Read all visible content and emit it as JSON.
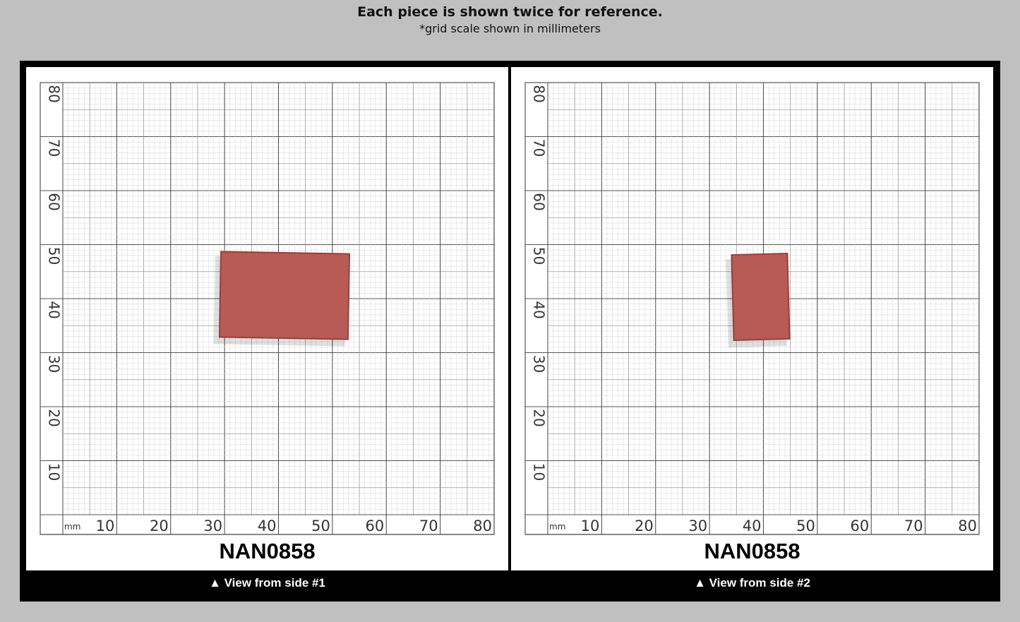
{
  "header": {
    "title": "Each piece is shown twice for reference.",
    "subtitle": "*grid scale shown in millimeters"
  },
  "panels": [
    {
      "y_labels": [
        "80",
        "70",
        "60",
        "50",
        "40",
        "30",
        "20",
        "10"
      ],
      "unit": "mm",
      "x_labels": [
        "10",
        "20",
        "30",
        "40",
        "50",
        "60",
        "70",
        "80"
      ],
      "code": "NAN0858",
      "caption": "▲ View from side #1"
    },
    {
      "y_labels": [
        "80",
        "70",
        "60",
        "50",
        "40",
        "30",
        "20",
        "10"
      ],
      "unit": "mm",
      "x_labels": [
        "10",
        "20",
        "30",
        "40",
        "50",
        "60",
        "70",
        "80"
      ],
      "code": "NAN0858",
      "caption": "▲ View from side #2"
    }
  ]
}
